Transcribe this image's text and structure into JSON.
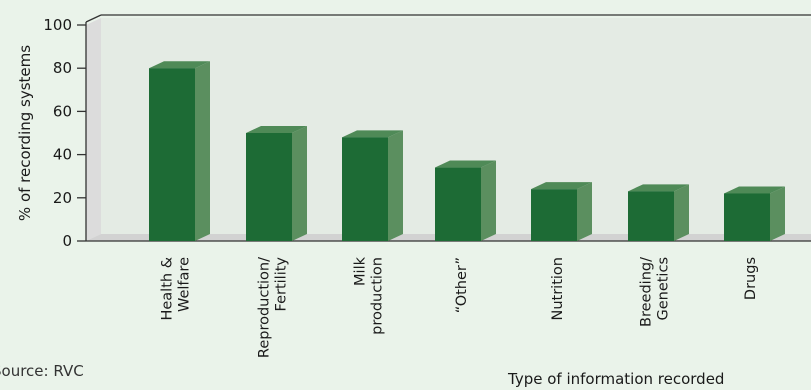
{
  "chart_data": {
    "type": "bar",
    "style": "3d",
    "categories": [
      [
        "Health &",
        "Welfare"
      ],
      [
        "Reproduction/",
        "Fertility"
      ],
      [
        "Milk",
        "production"
      ],
      [
        "“Other”"
      ],
      [
        "Nutrition"
      ],
      [
        "Breeding/",
        "Genetics"
      ],
      [
        "Drugs"
      ]
    ],
    "values": [
      80,
      50,
      48,
      34,
      24,
      23,
      22
    ],
    "ylabel": "% of recording systems",
    "xlabel": "Type of information recorded",
    "ylim": [
      0,
      100
    ],
    "yticks": [
      0,
      20,
      40,
      60,
      80,
      100
    ],
    "grid": false,
    "colors": {
      "bar_front": "#1d6b35",
      "bar_side": "#5b8f5f",
      "bar_top": "#4f8a57",
      "wall": "#dcdcdc",
      "floor": "#d2d2d2",
      "background": "#eaf3ea",
      "axis": "#333333"
    }
  },
  "source": "Source: RVC"
}
